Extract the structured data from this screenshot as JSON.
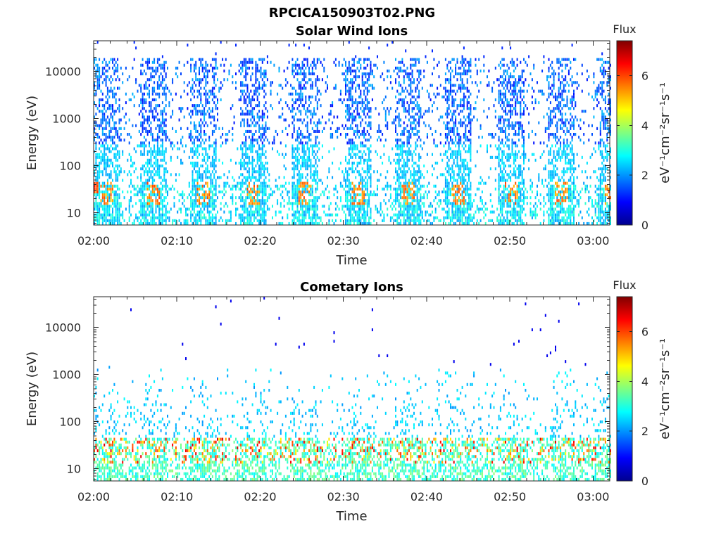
{
  "figure_title": "RPCICA150903T02.PNG",
  "chart_data": [
    {
      "type": "heatmap",
      "title": "Solar Wind Ions",
      "xlabel": "Time",
      "ylabel": "Energy (eV)",
      "x_ticks": [
        "02:00",
        "02:10",
        "02:20",
        "02:30",
        "02:40",
        "02:50",
        "03:00"
      ],
      "x_range": [
        "02:00",
        "03:02"
      ],
      "y_scale": "log",
      "y_ticks": [
        "10",
        "100",
        "1000",
        "10000"
      ],
      "y_range": [
        5.5,
        45000
      ],
      "grid": false,
      "colorbar": {
        "label": "Flux",
        "units": "eV-1cm-2sr-1s-1",
        "ticks": [
          "0",
          "2",
          "4",
          "6"
        ],
        "range": [
          0,
          7.4
        ],
        "colormap": "jet"
      },
      "sweep_start_minutes": [
        0,
        5.5,
        11.5,
        17.5,
        23.7,
        30,
        36,
        42,
        48.5,
        54.5,
        60.5
      ],
      "sweep_duration_minutes": 3.2,
      "low_energy_peak_ev": 25,
      "low_energy_peak_flux": 5.0,
      "background_flux": 2.0,
      "seed": 12345
    },
    {
      "type": "heatmap",
      "title": "Cometary Ions",
      "xlabel": "Time",
      "ylabel": "Energy (eV)",
      "x_ticks": [
        "02:00",
        "02:10",
        "02:20",
        "02:30",
        "02:40",
        "02:50",
        "03:00"
      ],
      "x_range": [
        "02:00",
        "03:02"
      ],
      "y_scale": "log",
      "y_ticks": [
        "10",
        "100",
        "1000",
        "10000"
      ],
      "y_range": [
        5.5,
        45000
      ],
      "grid": false,
      "colorbar": {
        "label": "Flux",
        "units": "eV-1cm-2sr-1s-1",
        "ticks": [
          "0",
          "2",
          "4",
          "6"
        ],
        "range": [
          0,
          7.4
        ],
        "colormap": "jet"
      },
      "sweep_start_minutes": [
        0,
        5.5,
        11.5,
        17.5,
        23.7,
        30,
        36,
        42,
        48.5,
        54.5,
        60.5
      ],
      "sweep_duration_minutes": 3.2,
      "low_energy_peak_ev": 28,
      "low_energy_peak_flux": 6.8,
      "background_flux": 2.6,
      "seed": 67890
    }
  ]
}
